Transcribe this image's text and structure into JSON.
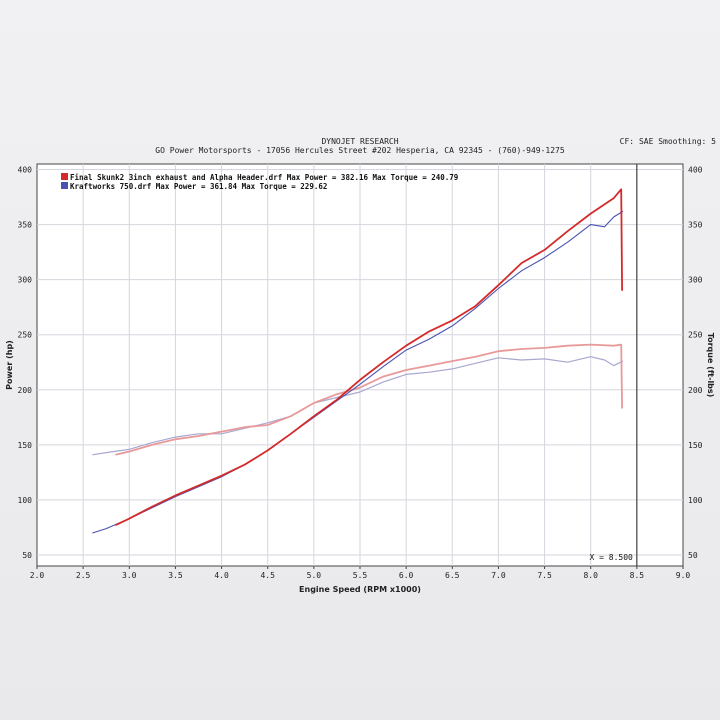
{
  "header": {
    "title": "DYNOJET RESEARCH",
    "subtitle": "GO Power Motorsports - 17056 Hercules Street #202 Hesperia, CA 92345 - (760)-949-1275",
    "settings": "CF: SAE  Smoothing: 5"
  },
  "colors": {
    "run1": "#d42a2a",
    "run1_light": "#e89a9a",
    "run2": "#4a52b0",
    "run2_light": "#a8a8d0"
  },
  "chart_data": {
    "type": "line",
    "xlabel": "Engine Speed (RPM x1000)",
    "ylabel": "Power (hp)",
    "y2label": "Torque (ft-lbs)",
    "xlim": [
      2.0,
      9.0
    ],
    "ylim": [
      40,
      405
    ],
    "x_ticks": [
      "2.0",
      "2.5",
      "3.0",
      "3.5",
      "4.0",
      "4.5",
      "5.0",
      "5.5",
      "6.0",
      "6.5",
      "7.0",
      "7.5",
      "8.0",
      "8.5",
      "9.0"
    ],
    "y_ticks": [
      "400",
      "350",
      "300",
      "250",
      "200",
      "150",
      "100",
      "50"
    ],
    "grid": true,
    "legend": "top-left",
    "cursor": {
      "x": 8.5,
      "label": "X = 8.500"
    },
    "legend_entries": [
      "Final Skunk2 3inch exhaust and Alpha Header.drf Max Power = 382.16 Max Torque = 240.79",
      "Kraftworks 750.drf Max Power = 361.84 Max Torque = 229.62"
    ],
    "series": [
      {
        "name": "Final Skunk2 3inch exhaust and Alpha Header.drf",
        "measure": "power",
        "x": [
          2.85,
          3.0,
          3.25,
          3.5,
          3.75,
          4.0,
          4.25,
          4.5,
          4.75,
          5.0,
          5.25,
          5.5,
          5.75,
          6.0,
          6.25,
          6.5,
          6.75,
          7.0,
          7.25,
          7.5,
          7.75,
          8.0,
          8.25,
          8.33,
          8.34
        ],
        "values": [
          77,
          83,
          94,
          104,
          113,
          122,
          132,
          145,
          160,
          176,
          191,
          209,
          225,
          240,
          253,
          263,
          276,
          295,
          315,
          327,
          344,
          360,
          374,
          382,
          290
        ]
      },
      {
        "name": "Kraftworks 750.drf",
        "measure": "power",
        "x": [
          2.6,
          2.75,
          3.0,
          3.25,
          3.5,
          3.75,
          4.0,
          4.25,
          4.5,
          4.75,
          5.0,
          5.25,
          5.5,
          5.75,
          6.0,
          6.25,
          6.5,
          6.75,
          7.0,
          7.25,
          7.5,
          7.75,
          8.0,
          8.15,
          8.25,
          8.35
        ],
        "values": [
          70,
          74,
          83,
          93,
          103,
          112,
          121,
          132,
          145,
          160,
          175,
          190,
          205,
          221,
          236,
          246,
          258,
          274,
          292,
          308,
          320,
          334,
          350,
          348,
          357,
          362
        ]
      },
      {
        "name": "Final Skunk2 3inch exhaust and Alpha Header.drf",
        "measure": "torque",
        "x": [
          2.85,
          3.0,
          3.25,
          3.5,
          3.75,
          4.0,
          4.25,
          4.5,
          4.75,
          5.0,
          5.25,
          5.5,
          5.75,
          6.0,
          6.25,
          6.5,
          6.75,
          7.0,
          7.25,
          7.5,
          7.75,
          8.0,
          8.25,
          8.33,
          8.34
        ],
        "values": [
          141,
          144,
          150,
          155,
          158,
          162,
          166,
          168,
          176,
          188,
          196,
          202,
          212,
          218,
          222,
          226,
          230,
          235,
          237,
          238,
          240,
          241,
          240,
          241,
          183
        ]
      },
      {
        "name": "Kraftworks 750.drf",
        "measure": "torque",
        "x": [
          2.6,
          2.75,
          3.0,
          3.25,
          3.5,
          3.75,
          4.0,
          4.25,
          4.5,
          4.75,
          5.0,
          5.25,
          5.5,
          5.75,
          6.0,
          6.25,
          6.5,
          6.75,
          7.0,
          7.25,
          7.5,
          7.75,
          8.0,
          8.15,
          8.25,
          8.35
        ],
        "values": [
          141,
          143,
          146,
          152,
          157,
          160,
          160,
          165,
          170,
          176,
          188,
          193,
          198,
          207,
          214,
          216,
          219,
          224,
          229,
          227,
          228,
          225,
          230,
          227,
          222,
          226
        ]
      }
    ]
  }
}
